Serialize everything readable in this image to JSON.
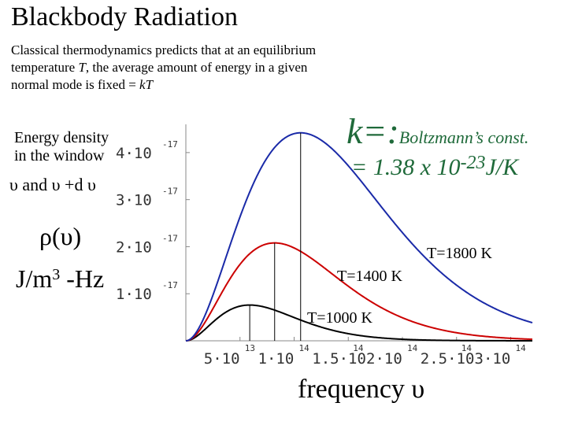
{
  "title": "Blackbody Radiation",
  "intro": {
    "part1": "Classical thermodynamics predicts that at an equilibrium temperature ",
    "T": "T",
    "part2": ", the average amount of energy in a given normal mode is fixed = ",
    "kT": "kT"
  },
  "boltzmann": {
    "k": "k=:",
    "name": "Boltzmann’s  const.",
    "value": "= 1.38 x 10",
    "exponent": "-23",
    "unit": "J/K"
  },
  "left_label": {
    "line1": "Energy density",
    "line2": "in the window",
    "line3": "υ and υ +d υ",
    "rho": "ρ(υ)",
    "unit_a": "J/m",
    "unit_exp": "3",
    "unit_b": " -Hz"
  },
  "xlabel": "frequency  υ",
  "colors": {
    "green_text": "#1f6a3a",
    "curve_black": "#000000",
    "curve_red": "#cc0000",
    "curve_blue": "#1a2aa8"
  },
  "chart_data": {
    "type": "line",
    "xlabel": "frequency  υ",
    "ylabel": "ρ(υ) J/m3 -Hz",
    "xlim": [
      0,
      320000000000000.0
    ],
    "ylim": [
      0,
      4.6e-17
    ],
    "x_tick_labels": [
      {
        "mant": "5·10",
        "exp": "13"
      },
      {
        "mant": "1·10",
        "exp": "14"
      },
      {
        "mant": "1.5·10",
        "exp": "14"
      },
      {
        "mant": "2·10",
        "exp": "14"
      },
      {
        "mant": "2.5·10",
        "exp": "14"
      },
      {
        "mant": "3·10",
        "exp": "14"
      }
    ],
    "x_ticks": [
      50000000000000.0,
      100000000000000.0,
      150000000000000.0,
      200000000000000.0,
      250000000000000.0,
      300000000000000.0
    ],
    "y_tick_labels": [
      {
        "mant": "1·10",
        "exp": "-17"
      },
      {
        "mant": "2·10",
        "exp": "-17"
      },
      {
        "mant": "3·10",
        "exp": "-17"
      },
      {
        "mant": "4·10",
        "exp": "-17"
      }
    ],
    "y_ticks": [
      1e-17,
      2e-17,
      3e-17,
      4e-17
    ],
    "series": [
      {
        "name": "T=1000 K",
        "temperature": 1000,
        "peak_x": 59000000000000.0,
        "peak_y": 7.6e-18,
        "color": "#000000"
      },
      {
        "name": "T=1400 K",
        "temperature": 1400,
        "peak_x": 82000000000000.0,
        "peak_y": 2.08e-17,
        "color": "#cc0000"
      },
      {
        "name": "T=1800 K",
        "temperature": 1800,
        "peak_x": 106000000000000.0,
        "peak_y": 4.42e-17,
        "color": "#1a2aa8"
      }
    ],
    "grid": false
  }
}
